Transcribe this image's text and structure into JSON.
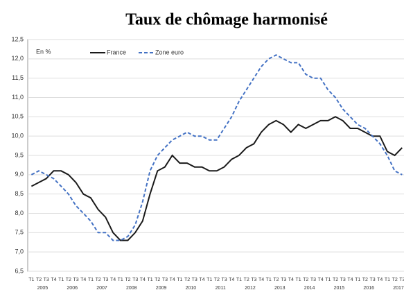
{
  "chart_data": {
    "type": "line",
    "title": "Taux de chômage harmonisé",
    "annotation": "En %",
    "categories": [
      "T1",
      "T2",
      "T3",
      "T4",
      "T1",
      "T2",
      "T3",
      "T4",
      "T1",
      "T2",
      "T3",
      "T4",
      "T1",
      "T2",
      "T3",
      "T4",
      "T1",
      "T2",
      "T3",
      "T4",
      "T1",
      "T2",
      "T3",
      "T4",
      "T1",
      "T2",
      "T3",
      "T4",
      "T1",
      "T2",
      "T3",
      "T4",
      "T1",
      "T2",
      "T3",
      "T4",
      "T1",
      "T2",
      "T3",
      "T4",
      "T1",
      "T2",
      "T3",
      "T4",
      "T1",
      "T2",
      "T3",
      "T4",
      "T1",
      "T2",
      "T3"
    ],
    "years": [
      "2005",
      "2006",
      "2007",
      "2008",
      "2009",
      "2010",
      "2011",
      "2012",
      "2013",
      "2014",
      "2015",
      "2016",
      "2017"
    ],
    "series": [
      {
        "name": "France",
        "color": "#1a1a1a",
        "dash": false,
        "values": [
          8.7,
          8.8,
          8.9,
          9.1,
          9.1,
          9.0,
          8.8,
          8.5,
          8.4,
          8.1,
          7.9,
          7.5,
          7.3,
          7.3,
          7.5,
          7.8,
          8.5,
          9.1,
          9.2,
          9.5,
          9.3,
          9.3,
          9.2,
          9.2,
          9.1,
          9.1,
          9.2,
          9.4,
          9.5,
          9.7,
          9.8,
          10.1,
          10.3,
          10.4,
          10.3,
          10.1,
          10.3,
          10.2,
          10.3,
          10.4,
          10.4,
          10.5,
          10.4,
          10.2,
          10.2,
          10.1,
          10.0,
          10.0,
          9.6,
          9.5,
          9.7
        ]
      },
      {
        "name": "Zone euro",
        "color": "#4472c4",
        "dash": true,
        "values": [
          9.0,
          9.1,
          9.0,
          8.9,
          8.7,
          8.5,
          8.2,
          8.0,
          7.8,
          7.5,
          7.5,
          7.3,
          7.3,
          7.4,
          7.7,
          8.3,
          9.1,
          9.5,
          9.7,
          9.9,
          10.0,
          10.1,
          10.0,
          10.0,
          9.9,
          9.9,
          10.2,
          10.5,
          10.9,
          11.2,
          11.5,
          11.8,
          12.0,
          12.1,
          12.0,
          11.9,
          11.9,
          11.6,
          11.5,
          11.5,
          11.2,
          11.0,
          10.7,
          10.5,
          10.3,
          10.2,
          10.0,
          9.8,
          9.5,
          9.1,
          9.0
        ]
      }
    ],
    "ylim": [
      6.5,
      12.5
    ],
    "yticks": [
      {
        "value": 6.5,
        "label": "6,5"
      },
      {
        "value": 7,
        "label": "7,0"
      },
      {
        "value": 7.5,
        "label": "7,5"
      },
      {
        "value": 8,
        "label": "8,0"
      },
      {
        "value": 8.5,
        "label": "8,5"
      },
      {
        "value": 9,
        "label": "9,0"
      },
      {
        "value": 9.5,
        "label": "9,5"
      },
      {
        "value": 10,
        "label": "10,0"
      },
      {
        "value": 10.5,
        "label": "10,5"
      },
      {
        "value": 11,
        "label": "11,0"
      },
      {
        "value": 11.5,
        "label": "11,5"
      },
      {
        "value": 12,
        "label": "12,0"
      },
      {
        "value": 12.5,
        "label": "12,5"
      }
    ],
    "grid": true
  }
}
